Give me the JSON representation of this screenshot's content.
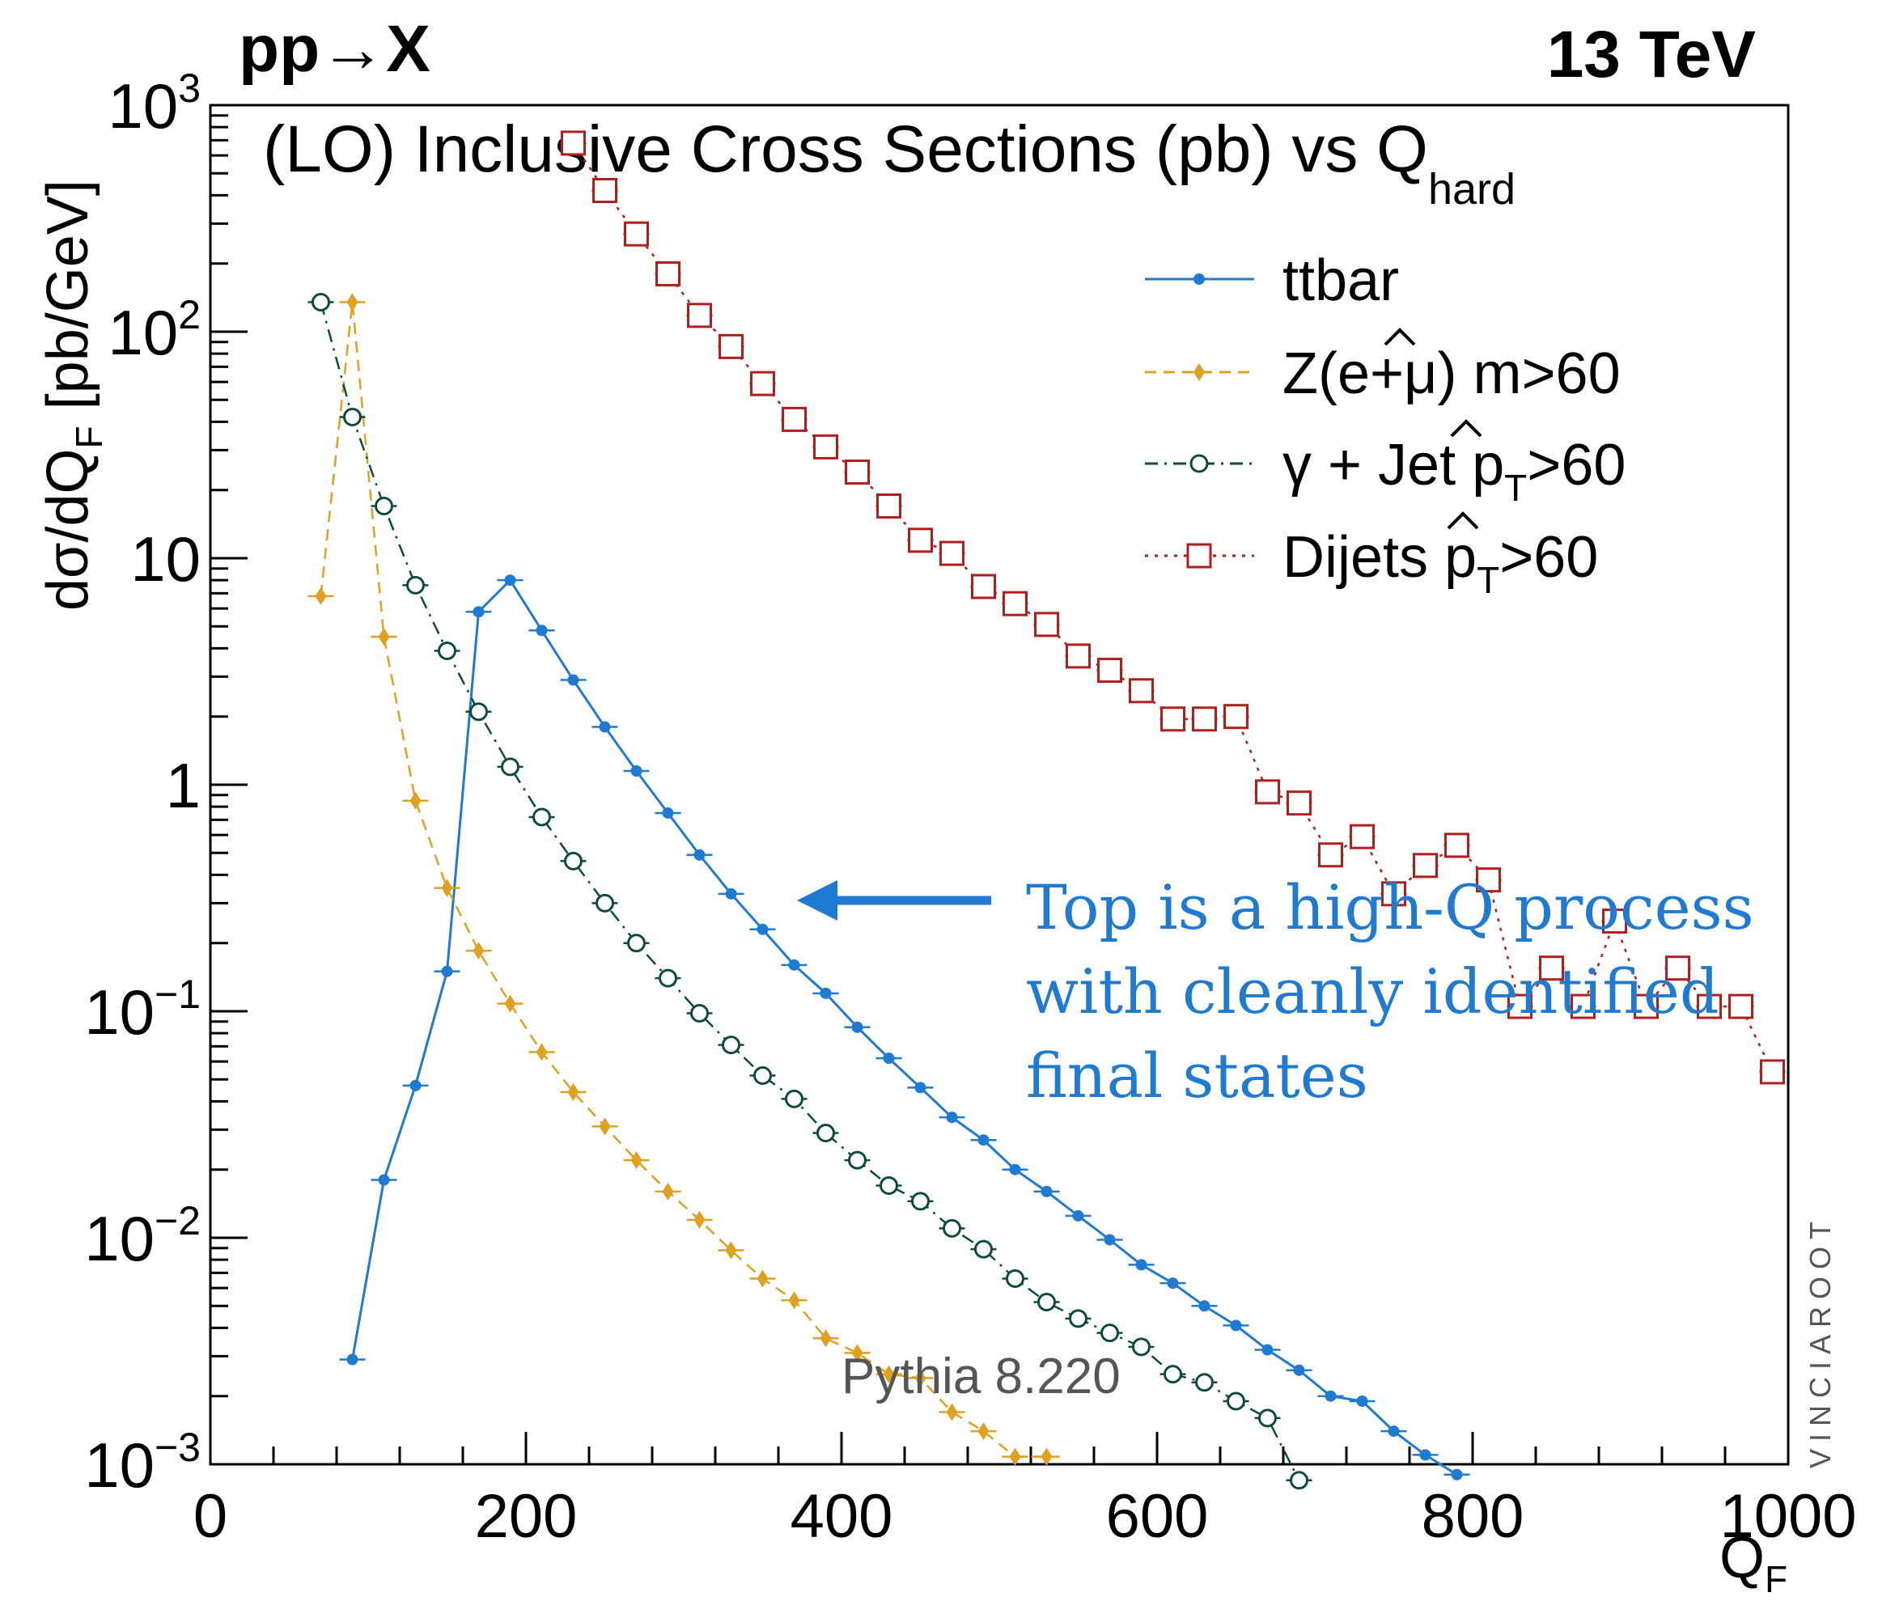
{
  "header": {
    "left": "pp→X",
    "right": "13 TeV"
  },
  "chart_data": {
    "type": "line",
    "title": "(LO) Inclusive Cross Sections (pb) vs Q",
    "title_subscript": "hard",
    "xlabel": "Q",
    "xlabel_subscript": "F",
    "ylabel": "dσ/dQ",
    "ylabel_subscript": "F",
    "ylabel_unit": "[pb/GeV]",
    "xlim": [
      0,
      1000
    ],
    "ylim": [
      0.001,
      1000
    ],
    "yscale": "log",
    "xticks": [
      0,
      200,
      400,
      600,
      800,
      1000
    ],
    "xtick_labels": [
      "0",
      "200",
      "400",
      "600",
      "800",
      "1000"
    ],
    "yticks": [
      0.001,
      0.01,
      0.1,
      1,
      10,
      100,
      1000
    ],
    "ytick_labels": [
      {
        "base": "10",
        "exp": "−3"
      },
      {
        "base": "10",
        "exp": "−2"
      },
      {
        "base": "10",
        "exp": "−1"
      },
      {
        "base": "1",
        "exp": ""
      },
      {
        "base": "10",
        "exp": ""
      },
      {
        "base": "10",
        "exp": "2"
      },
      {
        "base": "10",
        "exp": "3"
      }
    ],
    "legend_position": "top-right",
    "series": [
      {
        "name": "ttbar",
        "color": "#1f7ad1",
        "marker": "dot",
        "line": "solid",
        "x": [
          90,
          110,
          130,
          150,
          170,
          190,
          210,
          230,
          250,
          270,
          290,
          310,
          330,
          350,
          370,
          390,
          410,
          430,
          450,
          470,
          490,
          510,
          530,
          550,
          570,
          590,
          610,
          630,
          650,
          670,
          690,
          710,
          730,
          750,
          770,
          790
        ],
        "y": [
          0.0029,
          0.018,
          0.047,
          0.15,
          5.8,
          8.0,
          4.8,
          2.9,
          1.8,
          1.15,
          0.75,
          0.49,
          0.33,
          0.23,
          0.16,
          0.12,
          0.085,
          0.062,
          0.046,
          0.034,
          0.027,
          0.02,
          0.016,
          0.0125,
          0.0098,
          0.0076,
          0.0063,
          0.005,
          0.0041,
          0.0032,
          0.0026,
          0.002,
          0.0019,
          0.0014,
          0.0011,
          0.0009
        ]
      },
      {
        "name": "Z(e+μ) m̂>60",
        "color": "#e0a020",
        "marker": "diamond",
        "line": "dashed",
        "x": [
          70,
          90,
          110,
          130,
          150,
          170,
          190,
          210,
          230,
          250,
          270,
          290,
          310,
          330,
          350,
          370,
          390,
          410,
          430,
          450,
          470,
          490,
          510,
          530
        ],
        "y": [
          6.8,
          135,
          4.5,
          0.85,
          0.35,
          0.185,
          0.108,
          0.066,
          0.044,
          0.031,
          0.022,
          0.016,
          0.012,
          0.0088,
          0.0066,
          0.0053,
          0.0036,
          0.0031,
          0.0025,
          0.0024,
          0.0017,
          0.0014,
          0.00108,
          0.00108
        ]
      },
      {
        "name": "γ + Jet p̂T>60",
        "color": "#0f4a40",
        "marker": "circle",
        "line": "dashdot",
        "x": [
          70,
          90,
          110,
          130,
          150,
          170,
          190,
          210,
          230,
          250,
          270,
          290,
          310,
          330,
          350,
          370,
          390,
          410,
          430,
          450,
          470,
          490,
          510,
          530,
          550,
          570,
          590,
          610,
          630,
          650,
          670,
          690
        ],
        "y": [
          135,
          42,
          17,
          7.6,
          3.9,
          2.1,
          1.2,
          0.72,
          0.46,
          0.3,
          0.2,
          0.14,
          0.098,
          0.071,
          0.052,
          0.041,
          0.029,
          0.022,
          0.017,
          0.0145,
          0.011,
          0.0089,
          0.0066,
          0.0052,
          0.0044,
          0.0038,
          0.0033,
          0.0025,
          0.0023,
          0.0019,
          0.0016,
          0.00085
        ]
      },
      {
        "name": "Dijets p̂T>60",
        "color": "#b01e1e",
        "marker": "square",
        "line": "dotted",
        "x": [
          230,
          250,
          270,
          290,
          310,
          330,
          350,
          370,
          390,
          410,
          430,
          450,
          470,
          490,
          510,
          530,
          550,
          570,
          590,
          610,
          630,
          650,
          670,
          690,
          710,
          730,
          750,
          770,
          790,
          810,
          830,
          850,
          870,
          890,
          910,
          930,
          950,
          970,
          990
        ],
        "y": [
          680,
          420,
          270,
          180,
          118,
          86,
          59,
          41,
          31,
          24,
          17,
          12,
          10.5,
          7.5,
          6.3,
          5.1,
          3.7,
          3.2,
          2.6,
          1.95,
          1.95,
          2.0,
          0.93,
          0.83,
          0.49,
          0.59,
          0.33,
          0.44,
          0.54,
          0.38,
          0.105,
          0.155,
          0.105,
          0.25,
          0.105,
          0.155,
          0.105,
          0.105,
          0.054
        ]
      }
    ],
    "annotations": {
      "note_lines": [
        "Top is a high-Q process",
        "with cleanly identified",
        "final states"
      ],
      "generator": "Pythia 8.220",
      "watermark": "VINCIAROOT"
    }
  }
}
